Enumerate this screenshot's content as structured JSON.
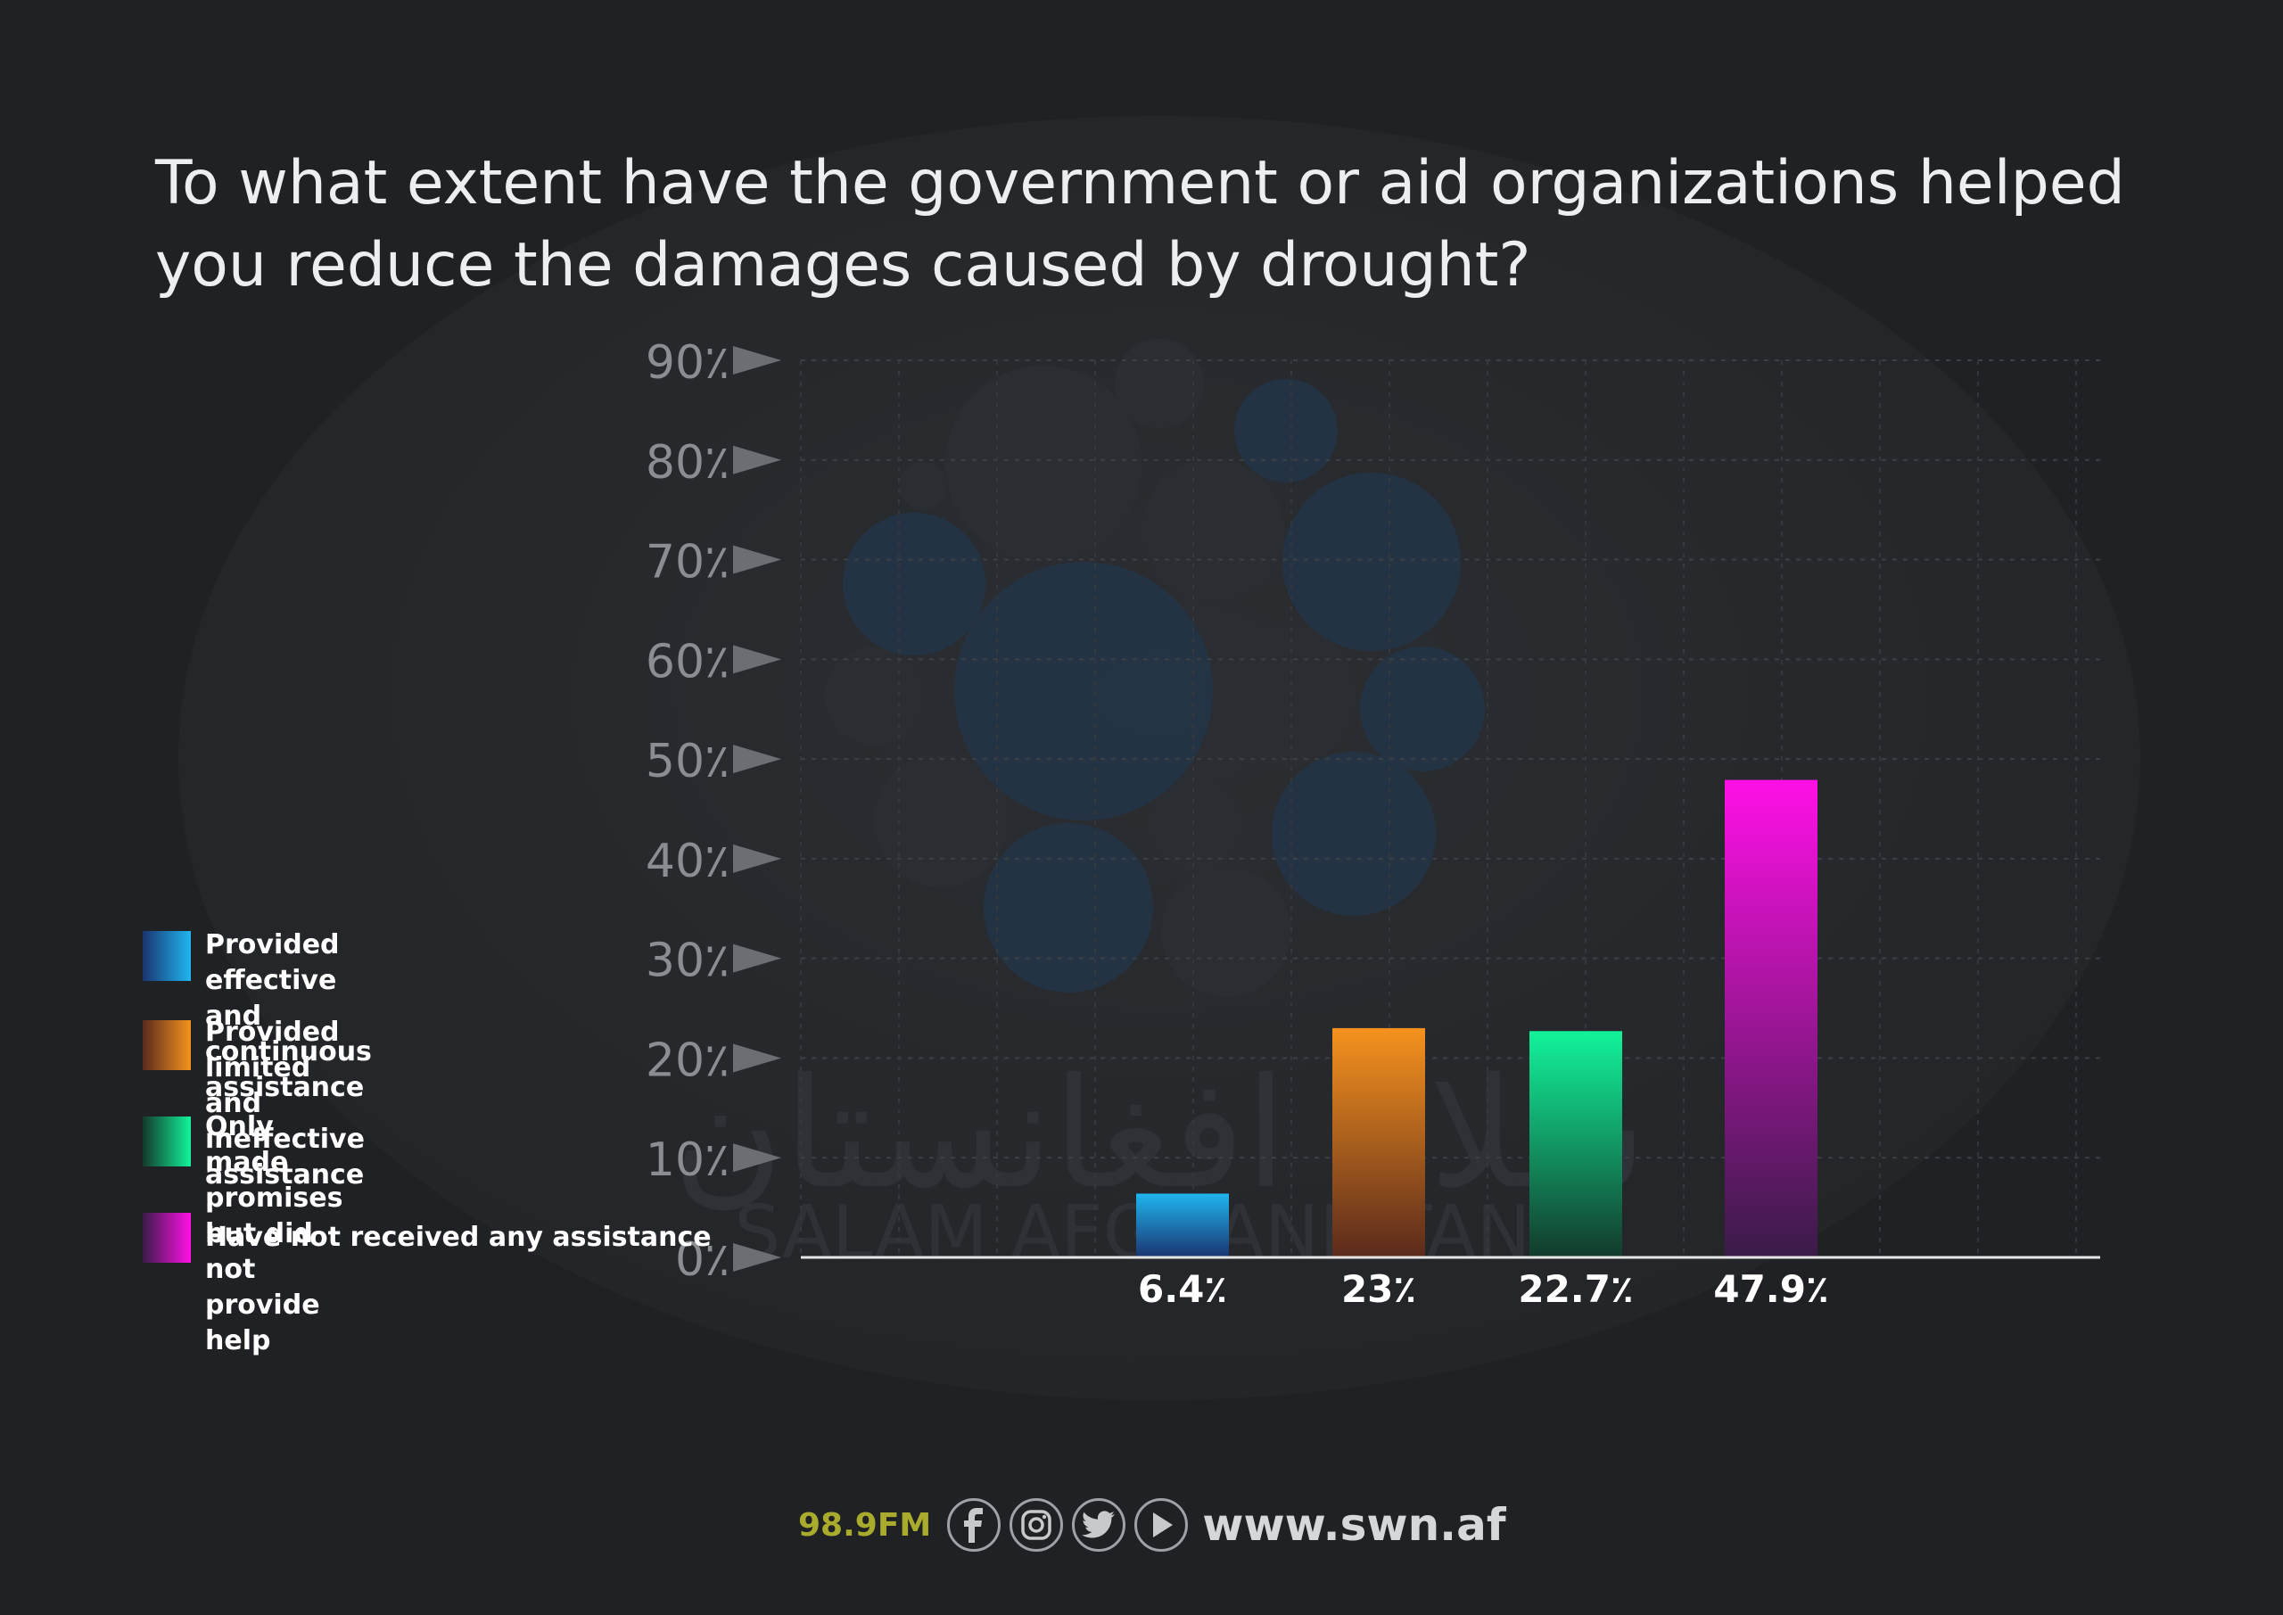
{
  "header": {
    "title": "To what extent have the government or aid organizations helped you reduce the damages caused by drought?"
  },
  "legend": {
    "items": [
      {
        "label": " Provided effective and\ncontinuous assistance",
        "color_top": "#1fb6f0",
        "color_bottom": "#1a3470"
      },
      {
        "label": "Provided limited and\nineffective assistance",
        "color_top": "#f6921e",
        "color_bottom": "#5a2a1c"
      },
      {
        "label": "Only made promises but did\nnot provide help",
        "color_top": "#12f39a",
        "color_bottom": "#133a2c"
      },
      {
        "label": "Have not received any assistance",
        "color_top": "#ff10e6",
        "color_bottom": "#3a1b48"
      }
    ]
  },
  "chart_data": {
    "type": "bar",
    "title": "To what extent have the government or aid organizations helped you reduce the damages caused by drought?",
    "categories": [
      "Provided effective and continuous assistance",
      "Provided limited and ineffective assistance",
      "Only made promises but did not provide help",
      "Have not received any assistance"
    ],
    "values": [
      6.4,
      23,
      22.7,
      47.9
    ],
    "value_labels": [
      "6.4٪",
      "23٪",
      "22.7٪",
      "47.9٪"
    ],
    "ylim": [
      0,
      90
    ],
    "yticks": [
      0,
      10,
      20,
      30,
      40,
      50,
      60,
      70,
      80,
      90
    ],
    "ytick_labels": [
      "0٪",
      "10٪",
      "20٪",
      "30٪",
      "40٪",
      "50٪",
      "60٪",
      "70٪",
      "80٪",
      "90٪"
    ],
    "grid": true,
    "legend_position": "left",
    "colors": [
      "#1fb6f0",
      "#f6921e",
      "#12f39a",
      "#ff10e6"
    ]
  },
  "watermark": {
    "arabic": "سلام افغانستان",
    "latin": "SALAM AFGHANISTAN"
  },
  "footer": {
    "frequency": "98.9FM",
    "website": "www.swn.af",
    "icons": [
      "facebook-icon",
      "instagram-icon",
      "twitter-icon",
      "play-icon"
    ]
  }
}
